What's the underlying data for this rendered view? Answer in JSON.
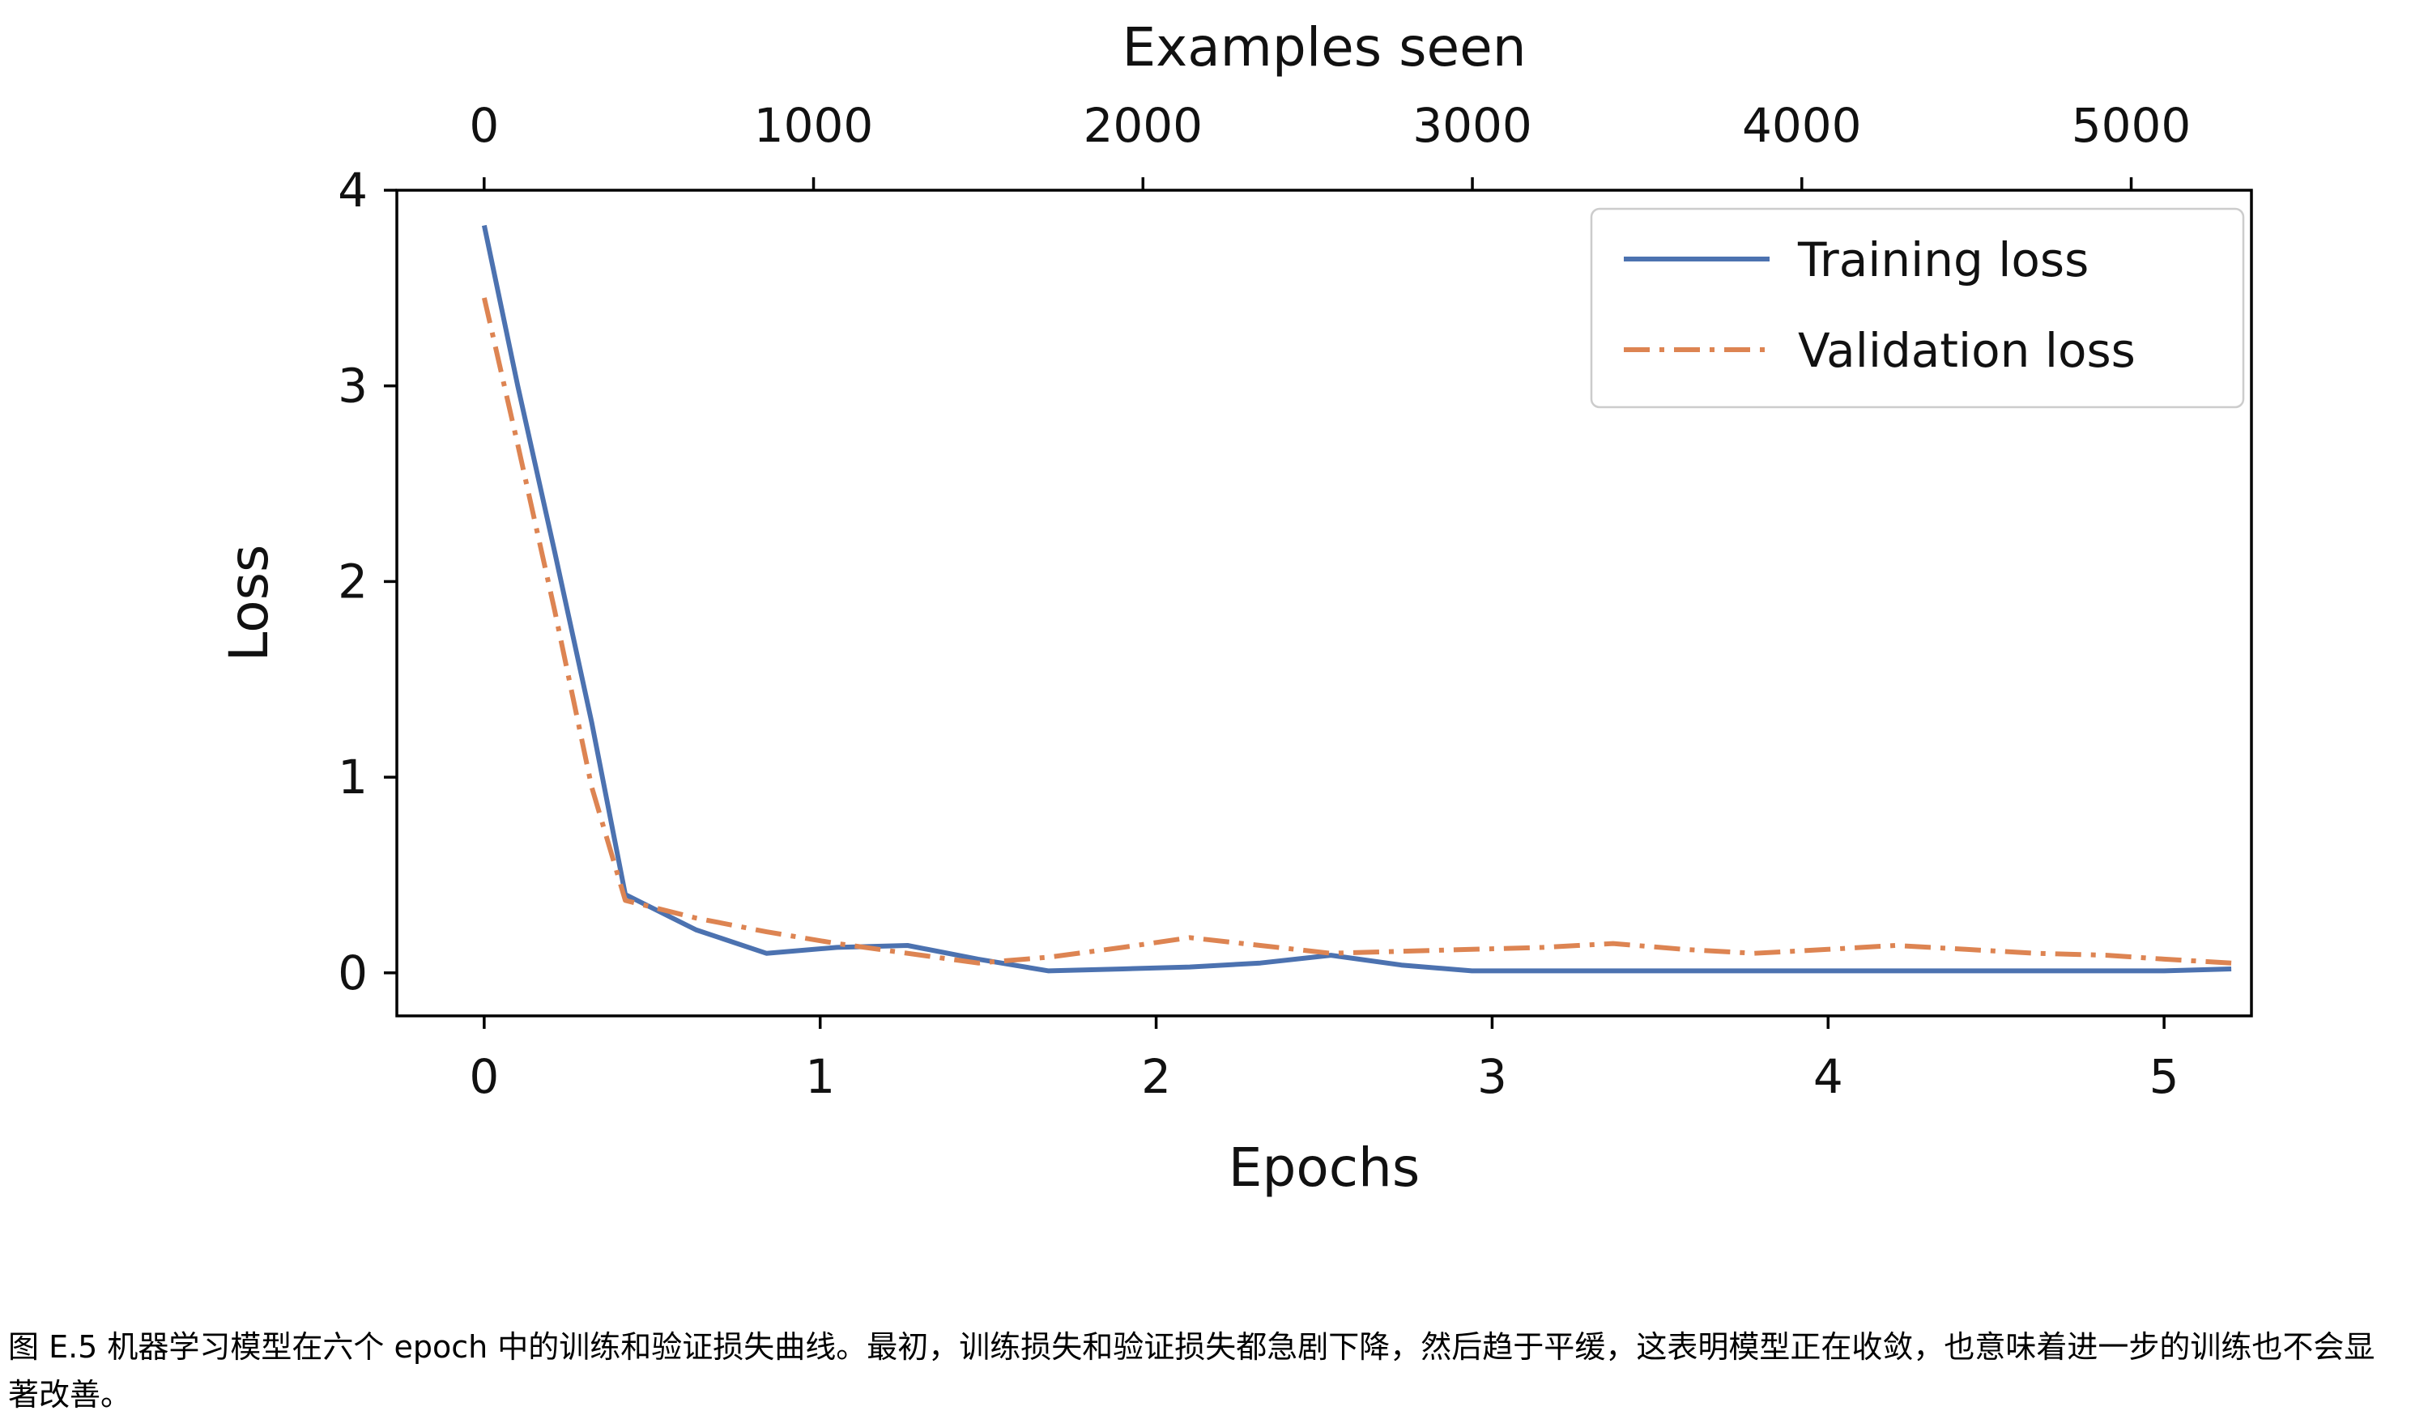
{
  "figure": {
    "caption": "图 E.5 机器学习模型在六个 epoch 中的训练和验证损失曲线。最初，训练损失和验证损失都急剧下降，然后趋于平缓，这表明模型正在收敛，也意味着进一步的训练也不会显著改善。"
  },
  "chart_data": {
    "type": "line",
    "title": "",
    "xlabel": "Epochs",
    "x2label": "Examples seen",
    "ylabel": "Loss",
    "xlim": [
      -0.26,
      5.26
    ],
    "x2lim": [
      -265,
      5365
    ],
    "ylim": [
      -0.22,
      4.0
    ],
    "xticks": [
      0,
      1,
      2,
      3,
      4,
      5
    ],
    "x2ticks": [
      0,
      1000,
      2000,
      3000,
      4000,
      5000
    ],
    "yticks": [
      0,
      1,
      2,
      3,
      4
    ],
    "grid": false,
    "legend_position": "upper right",
    "series": [
      {
        "name": "Training loss",
        "color": "#4C72B0",
        "style": "solid",
        "x": [
          0,
          0.1,
          0.21,
          0.32,
          0.42,
          0.63,
          0.84,
          1.05,
          1.26,
          1.47,
          1.68,
          1.9,
          2.1,
          2.31,
          2.52,
          2.73,
          2.94,
          3.15,
          3.36,
          3.57,
          3.78,
          4.0,
          4.2,
          4.41,
          4.62,
          4.83,
          5.0,
          5.2
        ],
        "y": [
          3.82,
          3.0,
          2.15,
          1.28,
          0.4,
          0.22,
          0.1,
          0.13,
          0.14,
          0.07,
          0.01,
          0.02,
          0.03,
          0.05,
          0.09,
          0.04,
          0.01,
          0.01,
          0.01,
          0.01,
          0.01,
          0.01,
          0.01,
          0.01,
          0.01,
          0.01,
          0.01,
          0.02
        ]
      },
      {
        "name": "Validation loss",
        "color": "#DD8452",
        "style": "dashdot",
        "x": [
          0,
          0.1,
          0.21,
          0.32,
          0.42,
          0.63,
          0.84,
          1.05,
          1.26,
          1.47,
          1.68,
          1.9,
          2.1,
          2.31,
          2.52,
          2.73,
          2.94,
          3.15,
          3.36,
          3.57,
          3.78,
          4.0,
          4.2,
          4.41,
          4.62,
          4.83,
          5.0,
          5.2
        ],
        "y": [
          3.45,
          2.7,
          1.85,
          0.95,
          0.37,
          0.28,
          0.21,
          0.15,
          0.1,
          0.05,
          0.08,
          0.13,
          0.18,
          0.14,
          0.1,
          0.11,
          0.12,
          0.13,
          0.15,
          0.12,
          0.1,
          0.12,
          0.14,
          0.12,
          0.1,
          0.09,
          0.07,
          0.05
        ]
      }
    ]
  }
}
